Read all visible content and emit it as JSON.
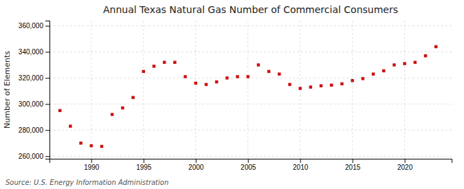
{
  "chart_data": {
    "type": "scatter",
    "title": "Annual Texas Natural Gas Number of Commercial Consumers",
    "ylabel": "Number of Elements",
    "source": "Source: U.S. Energy Information Administration",
    "x": [
      1987,
      1988,
      1989,
      1990,
      1991,
      1992,
      1993,
      1994,
      1995,
      1996,
      1997,
      1998,
      1999,
      2000,
      2001,
      2002,
      2003,
      2004,
      2005,
      2006,
      2007,
      2008,
      2009,
      2010,
      2011,
      2012,
      2013,
      2014,
      2015,
      2016,
      2017,
      2018,
      2019,
      2020,
      2021,
      2022,
      2023
    ],
    "values": [
      295000,
      283000,
      270000,
      268000,
      267500,
      292000,
      297000,
      305000,
      325000,
      329000,
      332000,
      332000,
      321000,
      316000,
      315000,
      317000,
      320000,
      321000,
      321000,
      330000,
      325000,
      323000,
      315000,
      312000,
      313000,
      314000,
      314500,
      315500,
      318000,
      319500,
      323000,
      325500,
      330000,
      331000,
      332000,
      337000,
      344000
    ],
    "color": "#cc1111",
    "marker": "square",
    "xlim": [
      1986.0,
      2024.5
    ],
    "xticks": [
      1990,
      1995,
      2000,
      2005,
      2010,
      2015,
      2020
    ],
    "ylim": [
      258000,
      364000
    ],
    "yticks": [
      {
        "value": 260000,
        "label": "260,000"
      },
      {
        "value": 280000,
        "label": "280,000"
      },
      {
        "value": 300000,
        "label": "300,000"
      },
      {
        "value": 320000,
        "label": "320,000"
      },
      {
        "value": 340000,
        "label": "340,000"
      },
      {
        "value": 360000,
        "label": "360,000"
      }
    ],
    "grid": true
  }
}
